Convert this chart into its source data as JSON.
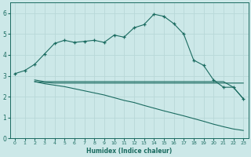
{
  "xlabel": "Humidex (Indice chaleur)",
  "bg_color": "#cce8e8",
  "grid_color": "#b8d8d8",
  "line_color": "#1a6b60",
  "xlim": [
    -0.5,
    23.5
  ],
  "ylim": [
    0,
    6.5
  ],
  "xticks": [
    0,
    1,
    2,
    3,
    4,
    5,
    6,
    7,
    8,
    9,
    10,
    11,
    12,
    13,
    14,
    15,
    16,
    17,
    18,
    19,
    20,
    21,
    22,
    23
  ],
  "yticks": [
    0,
    1,
    2,
    3,
    4,
    5,
    6
  ],
  "line1_x": [
    0,
    1,
    2,
    3,
    4,
    5,
    6,
    7,
    8,
    9,
    10,
    11,
    12,
    13,
    14,
    15,
    16,
    17,
    18,
    19,
    20,
    21,
    22,
    23
  ],
  "line1_y": [
    3.1,
    3.25,
    3.55,
    4.05,
    4.55,
    4.7,
    4.6,
    4.65,
    4.7,
    4.6,
    4.95,
    4.85,
    5.3,
    5.45,
    5.95,
    5.85,
    5.5,
    5.0,
    3.75,
    3.5,
    2.8,
    2.45,
    2.45,
    1.9
  ],
  "line2_x": [
    2,
    3,
    4,
    5,
    6,
    7,
    8,
    9,
    10,
    11,
    12,
    13,
    14,
    15,
    16,
    17,
    18,
    19,
    20,
    21,
    22,
    23
  ],
  "line2_y": [
    2.8,
    2.72,
    2.72,
    2.72,
    2.72,
    2.72,
    2.72,
    2.72,
    2.72,
    2.72,
    2.72,
    2.72,
    2.72,
    2.72,
    2.72,
    2.72,
    2.72,
    2.72,
    2.72,
    2.72,
    2.45,
    1.9
  ],
  "line3_x": [
    2,
    3,
    4,
    5,
    6,
    7,
    8,
    9,
    10,
    11,
    12,
    13,
    14,
    15,
    16,
    17,
    18,
    19,
    20,
    21,
    22,
    23
  ],
  "line3_y": [
    2.72,
    2.62,
    2.55,
    2.48,
    2.38,
    2.28,
    2.18,
    2.08,
    1.95,
    1.82,
    1.72,
    1.58,
    1.45,
    1.32,
    1.2,
    1.08,
    0.95,
    0.82,
    0.68,
    0.56,
    0.45,
    0.38
  ],
  "line4_x": [
    2,
    3,
    4,
    5,
    6,
    7,
    8,
    9,
    10,
    11,
    12,
    13,
    14,
    15,
    16,
    17,
    18,
    19,
    20,
    21,
    22,
    23
  ],
  "line4_y": [
    2.72,
    2.68,
    2.65,
    2.65,
    2.65,
    2.65,
    2.65,
    2.65,
    2.65,
    2.65,
    2.65,
    2.65,
    2.65,
    2.65,
    2.65,
    2.65,
    2.65,
    2.65,
    2.65,
    2.65,
    2.65,
    2.65
  ]
}
